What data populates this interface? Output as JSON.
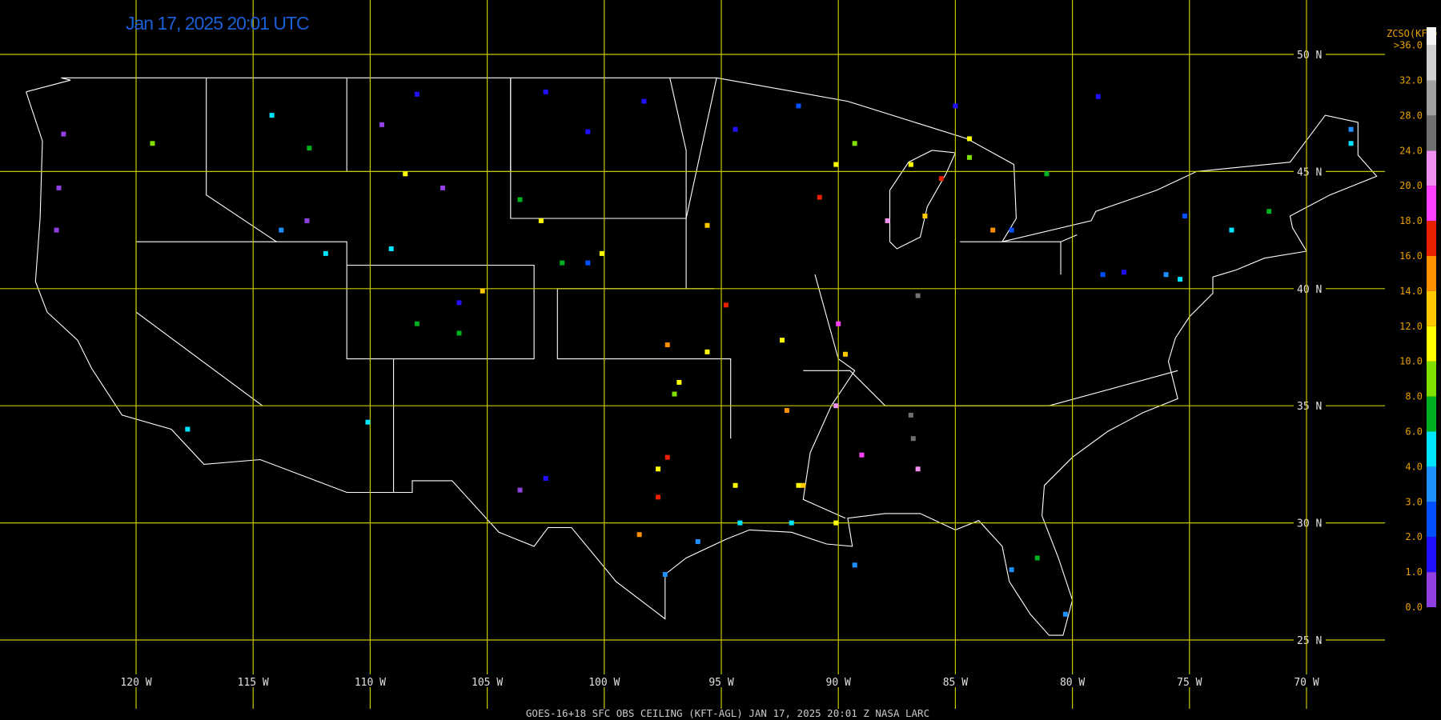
{
  "title": "Jan 17, 2025 20:01 UTC",
  "footer": "GOES-16+18  SFC OBS CEILING (KFT-AGL)   JAN 17, 2025 20:01 Z   NASA LARC",
  "lat_lines": [
    {
      "value": 50,
      "label": "50 N"
    },
    {
      "value": 45,
      "label": "45 N"
    },
    {
      "value": 40,
      "label": "40 N"
    },
    {
      "value": 35,
      "label": "35 N"
    },
    {
      "value": 30,
      "label": "30 N"
    },
    {
      "value": 25,
      "label": "25 N"
    }
  ],
  "lon_lines": [
    {
      "value": -120,
      "label": "120 W"
    },
    {
      "value": -115,
      "label": "115 W"
    },
    {
      "value": -110,
      "label": "110 W"
    },
    {
      "value": -105,
      "label": "105 W"
    },
    {
      "value": -100,
      "label": "100 W"
    },
    {
      "value": -95,
      "label": "95 W"
    },
    {
      "value": -90,
      "label": "90 W"
    },
    {
      "value": -85,
      "label": "85 W"
    },
    {
      "value": -80,
      "label": "80 W"
    },
    {
      "value": -75,
      "label": "75 W"
    },
    {
      "value": -70,
      "label": "70 W"
    }
  ],
  "colorbar": {
    "title": "ZCSO(KFt)",
    "levels": [
      {
        "value": 0,
        "label": "0.0"
      },
      {
        "value": 1,
        "label": "1.0"
      },
      {
        "value": 2,
        "label": "2.0"
      },
      {
        "value": 3,
        "label": "3.0"
      },
      {
        "value": 4,
        "label": "4.0"
      },
      {
        "value": 6,
        "label": "6.0"
      },
      {
        "value": 8,
        "label": "8.0"
      },
      {
        "value": 10,
        "label": "10.0"
      },
      {
        "value": 12,
        "label": "12.0"
      },
      {
        "value": 14,
        "label": "14.0"
      },
      {
        "value": 16,
        "label": "16.0"
      },
      {
        "value": 18,
        "label": "18.0"
      },
      {
        "value": 20,
        "label": "20.0"
      },
      {
        "value": 24,
        "label": "24.0"
      },
      {
        "value": 28,
        "label": "28.0"
      },
      {
        "value": 32,
        "label": "32.0"
      },
      {
        "value": 36,
        "label": ">36.0"
      }
    ],
    "colors": [
      "#9040e0",
      "#2010ff",
      "#0050ff",
      "#1e90ff",
      "#00e5ff",
      "#00b020",
      "#80e000",
      "#ffff00",
      "#ffc800",
      "#ff9000",
      "#e82000",
      "#ff40ff",
      "#f090f0",
      "#707070",
      "#a0a0a0",
      "#d0d0d0",
      "#f4f4f4"
    ]
  },
  "stations": [
    [
      -123.1,
      46.6,
      0.5
    ],
    [
      -123.3,
      44.3,
      0.5
    ],
    [
      -123.4,
      42.5,
      0.5
    ],
    [
      -109.5,
      47.0,
      0.5
    ],
    [
      -106.9,
      44.3,
      0.5
    ],
    [
      -103.6,
      31.4,
      0.5
    ],
    [
      -112.7,
      42.9,
      0.5
    ],
    [
      -108,
      48.3,
      1.5
    ],
    [
      -100.7,
      46.7,
      1.5
    ],
    [
      -98.3,
      48,
      1.5
    ],
    [
      -102.5,
      48.4,
      1.5
    ],
    [
      -94.4,
      46.8,
      1.5
    ],
    [
      -85,
      47.8,
      1.5
    ],
    [
      -78.9,
      48.2,
      1.5
    ],
    [
      -77.8,
      40.7,
      1.5
    ],
    [
      -106.2,
      39.4,
      1.5
    ],
    [
      -102.5,
      31.9,
      1.5
    ],
    [
      -91.7,
      47.8,
      2.5
    ],
    [
      -100.7,
      41.1,
      2.5
    ],
    [
      -82.6,
      42.5,
      2.5
    ],
    [
      -75.2,
      43.1,
      2.5
    ],
    [
      -78.7,
      40.6,
      2.5
    ],
    [
      -113.8,
      42.5,
      3.5
    ],
    [
      -76,
      40.6,
      3.5
    ],
    [
      -96,
      29.2,
      3.5
    ],
    [
      -97.4,
      27.8,
      3.5
    ],
    [
      -82.6,
      28,
      3.5
    ],
    [
      -80.3,
      26.1,
      3.5
    ],
    [
      -68.1,
      46.8,
      3.5
    ],
    [
      -89.3,
      28.2,
      3.5
    ],
    [
      -111.9,
      41.5,
      5
    ],
    [
      -109.1,
      41.7,
      5
    ],
    [
      -75.4,
      40.4,
      5
    ],
    [
      -73.2,
      42.5,
      5
    ],
    [
      -94.2,
      30,
      5
    ],
    [
      -92,
      30,
      5
    ],
    [
      -110.1,
      34.3,
      5
    ],
    [
      -117.8,
      34,
      5
    ],
    [
      -114.2,
      47.4,
      5
    ],
    [
      -68.1,
      46.2,
      5
    ],
    [
      -112.6,
      46,
      7
    ],
    [
      -108,
      38.5,
      7
    ],
    [
      -106.2,
      38.1,
      7
    ],
    [
      -101.8,
      41.1,
      7
    ],
    [
      -103.6,
      43.8,
      7
    ],
    [
      -81.5,
      28.5,
      7
    ],
    [
      -71.6,
      43.3,
      7
    ],
    [
      -81.1,
      44.9,
      7
    ],
    [
      -119.3,
      46.2,
      9
    ],
    [
      -97,
      35.5,
      9
    ],
    [
      -84.4,
      45.6,
      9
    ],
    [
      -89.3,
      46.2,
      9
    ],
    [
      -92.4,
      37.8,
      11
    ],
    [
      -95.6,
      37.3,
      11
    ],
    [
      -96.8,
      36,
      11
    ],
    [
      -94.4,
      31.6,
      11
    ],
    [
      -97.7,
      32.3,
      11
    ],
    [
      -100.1,
      41.5,
      11
    ],
    [
      -90.1,
      45.3,
      11
    ],
    [
      -86.9,
      45.3,
      11
    ],
    [
      -91.7,
      31.6,
      11
    ],
    [
      -90.1,
      30,
      11
    ],
    [
      -84.4,
      46.4,
      11
    ],
    [
      -108.5,
      44.9,
      11
    ],
    [
      -102.7,
      42.9,
      11
    ],
    [
      -95.6,
      42.7,
      13
    ],
    [
      -89.7,
      37.2,
      13
    ],
    [
      -86.3,
      43.1,
      13
    ],
    [
      -105.2,
      39.9,
      13
    ],
    [
      -91.5,
      31.6,
      13
    ],
    [
      -97.3,
      37.6,
      15
    ],
    [
      -98.5,
      29.5,
      15
    ],
    [
      -83.4,
      42.5,
      15
    ],
    [
      -92.2,
      34.8,
      15
    ],
    [
      -97.7,
      31.1,
      17
    ],
    [
      -85.6,
      44.7,
      17
    ],
    [
      -90.8,
      43.9,
      17
    ],
    [
      -94.8,
      39.3,
      17
    ],
    [
      -97.3,
      32.8,
      17
    ],
    [
      -90,
      38.5,
      19
    ],
    [
      -89,
      32.9,
      19
    ],
    [
      -86.6,
      32.3,
      22
    ],
    [
      -87.9,
      42.9,
      22
    ],
    [
      -90.1,
      35,
      22
    ],
    [
      -86.6,
      39.7,
      26
    ],
    [
      -86.8,
      33.6,
      26
    ],
    [
      -86.9,
      34.6,
      26
    ]
  ]
}
